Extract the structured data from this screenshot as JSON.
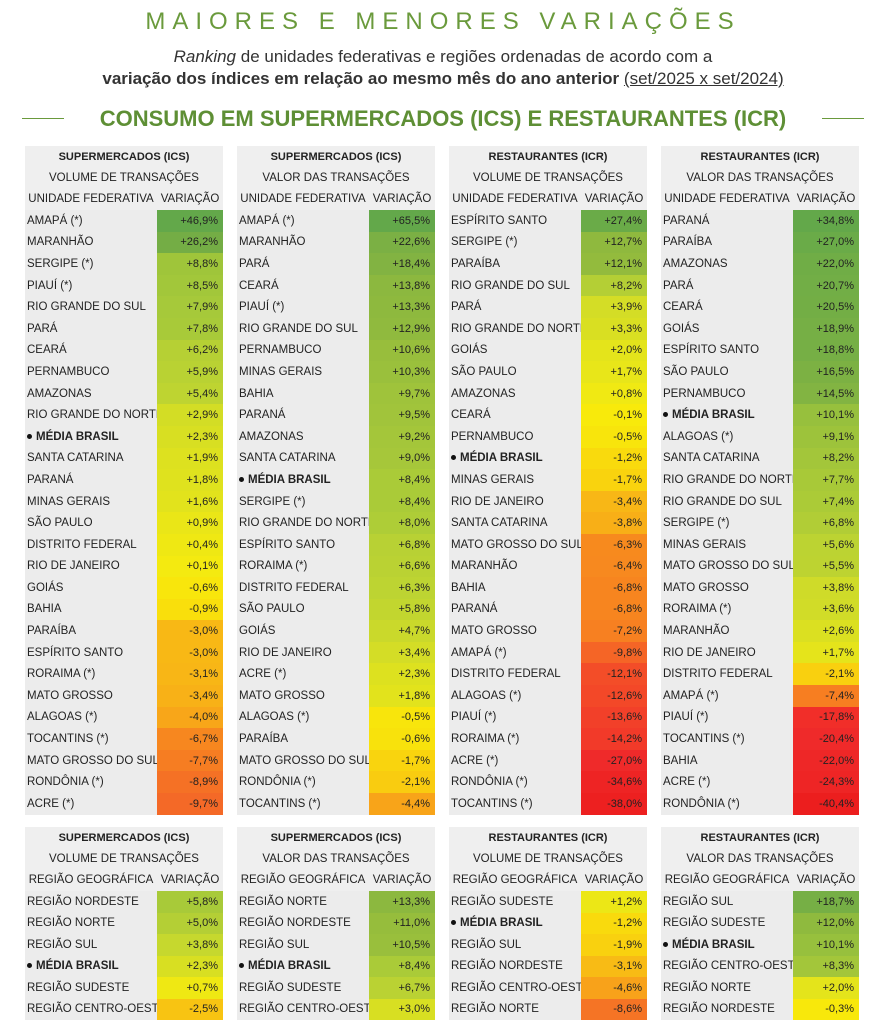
{
  "header": {
    "title": "MAIORES E MENORES VARIAÇÕES",
    "subtitle_italic": "Ranking",
    "subtitle_line1_rest": " de unidades federativas e regiões ordenadas de acordo com a",
    "subtitle_line2_bold": "variação dos índices em relação ao mesmo mês do ano anterior",
    "subtitle_line2_period": "(set/2025 x set/2024)",
    "section_title": "CONSUMO EM SUPERMERCADOS (ICS) E RESTAURANTES (ICR)"
  },
  "colors": {
    "accent": "#6a9a3c",
    "cell_gray": "#ececec",
    "header_gray": "#efefef"
  },
  "state_tables": [
    {
      "title": "SUPERMERCADOS (ICS)",
      "subtitle": "VOLUME DE TRANSAÇÕES",
      "col_name": "UNIDADE FEDERATIVA",
      "col_value": "VARIAÇÃO",
      "rows": [
        {
          "name": "AMAPÁ (*)",
          "value": "+46,9%",
          "color": "#63a84a"
        },
        {
          "name": "MARANHÃO",
          "value": "+26,2%",
          "color": "#74ad45"
        },
        {
          "name": "SERGIPE (*)",
          "value": "+8,8%",
          "color": "#9fc53a"
        },
        {
          "name": "PIAUÍ (*)",
          "value": "+8,5%",
          "color": "#a2c73a"
        },
        {
          "name": "RIO GRANDE DO SUL",
          "value": "+7,9%",
          "color": "#a6c93a"
        },
        {
          "name": "PARÁ",
          "value": "+7,8%",
          "color": "#a8ca39"
        },
        {
          "name": "CEARÁ",
          "value": "+6,2%",
          "color": "#b6d034"
        },
        {
          "name": "PERNAMBUCO",
          "value": "+5,9%",
          "color": "#b9d233"
        },
        {
          "name": "AMAZONAS",
          "value": "+5,4%",
          "color": "#bed431"
        },
        {
          "name": "RIO GRANDE DO NORTE",
          "value": "+2,9%",
          "color": "#d3dd25"
        },
        {
          "name": "MÉDIA BRASIL",
          "value": "+2,3%",
          "color": "#d8df22",
          "brasil": true
        },
        {
          "name": "SANTA CATARINA",
          "value": "+1,9%",
          "color": "#dde11f"
        },
        {
          "name": "PARANÁ",
          "value": "+1,8%",
          "color": "#dfe21e"
        },
        {
          "name": "MINAS GERAIS",
          "value": "+1,6%",
          "color": "#e2e31c"
        },
        {
          "name": "SÃO PAULO",
          "value": "+0,9%",
          "color": "#eae617"
        },
        {
          "name": "DISTRITO FEDERAL",
          "value": "+0,4%",
          "color": "#efe813"
        },
        {
          "name": "RIO DE JANEIRO",
          "value": "+0,1%",
          "color": "#f4ea10"
        },
        {
          "name": "GOIÁS",
          "value": "-0,6%",
          "color": "#f8e60c"
        },
        {
          "name": "BAHIA",
          "value": "-0,9%",
          "color": "#f9df0c"
        },
        {
          "name": "PARAÍBA",
          "value": "-3,0%",
          "color": "#f8b815"
        },
        {
          "name": "ESPÍRITO SANTO",
          "value": "-3,0%",
          "color": "#f8b815"
        },
        {
          "name": "RORAIMA (*)",
          "value": "-3,1%",
          "color": "#f8b616"
        },
        {
          "name": "MATO GROSSO",
          "value": "-3,4%",
          "color": "#f8b117"
        },
        {
          "name": "ALAGOAS (*)",
          "value": "-4,0%",
          "color": "#f8a619"
        },
        {
          "name": "TOCANTINS (*)",
          "value": "-6,7%",
          "color": "#f7871f"
        },
        {
          "name": "MATO GROSSO DO SUL",
          "value": "-7,7%",
          "color": "#f67d22"
        },
        {
          "name": "RONDÔNIA (*)",
          "value": "-8,9%",
          "color": "#f57125"
        },
        {
          "name": "ACRE (*)",
          "value": "-9,7%",
          "color": "#f46927"
        }
      ]
    },
    {
      "title": "SUPERMERCADOS (ICS)",
      "subtitle": "VALOR DAS TRANSAÇÕES",
      "col_name": "UNIDADE FEDERATIVA",
      "col_value": "VARIAÇÃO",
      "rows": [
        {
          "name": "AMAPÁ (*)",
          "value": "+65,5%",
          "color": "#63a84a"
        },
        {
          "name": "MARANHÃO",
          "value": "+22,6%",
          "color": "#7bb044"
        },
        {
          "name": "PARÁ",
          "value": "+18,4%",
          "color": "#82b342"
        },
        {
          "name": "CEARÁ",
          "value": "+13,8%",
          "color": "#8cb83f"
        },
        {
          "name": "PIAUÍ (*)",
          "value": "+13,3%",
          "color": "#8eb93e"
        },
        {
          "name": "RIO GRANDE DO SUL",
          "value": "+12,9%",
          "color": "#90ba3e"
        },
        {
          "name": "PERNAMBUCO",
          "value": "+10,6%",
          "color": "#98be3c"
        },
        {
          "name": "MINAS GERAIS",
          "value": "+10,3%",
          "color": "#9ac03c"
        },
        {
          "name": "BAHIA",
          "value": "+9,7%",
          "color": "#9fc33b"
        },
        {
          "name": "PARANÁ",
          "value": "+9,5%",
          "color": "#a1c43b"
        },
        {
          "name": "AMAZONAS",
          "value": "+9,2%",
          "color": "#a4c63a"
        },
        {
          "name": "SANTA CATARINA",
          "value": "+9,0%",
          "color": "#a6c73a"
        },
        {
          "name": "MÉDIA BRASIL",
          "value": "+8,4%",
          "color": "#aacb38",
          "brasil": true
        },
        {
          "name": "SERGIPE (*)",
          "value": "+8,4%",
          "color": "#aacb38"
        },
        {
          "name": "RIO GRANDE DO NORTE",
          "value": "+8,0%",
          "color": "#aecd37"
        },
        {
          "name": "ESPÍRITO SANTO",
          "value": "+6,8%",
          "color": "#b8d134"
        },
        {
          "name": "RORAIMA (*)",
          "value": "+6,6%",
          "color": "#bad233"
        },
        {
          "name": "DISTRITO FEDERAL",
          "value": "+6,3%",
          "color": "#bdd432"
        },
        {
          "name": "SÃO PAULO",
          "value": "+5,8%",
          "color": "#c2d62f"
        },
        {
          "name": "GOIÁS",
          "value": "+4,7%",
          "color": "#cad92b"
        },
        {
          "name": "RIO DE JANEIRO",
          "value": "+3,4%",
          "color": "#d4dd26"
        },
        {
          "name": "ACRE (*)",
          "value": "+2,3%",
          "color": "#dde11f"
        },
        {
          "name": "MATO GROSSO",
          "value": "+1,8%",
          "color": "#e2e31c"
        },
        {
          "name": "ALAGOAS (*)",
          "value": "-0,5%",
          "color": "#f8e50c"
        },
        {
          "name": "PARAÍBA",
          "value": "-0,6%",
          "color": "#f8e20c"
        },
        {
          "name": "MATO GROSSO DO SUL",
          "value": "-1,7%",
          "color": "#f9d40e"
        },
        {
          "name": "RONDÔNIA (*)",
          "value": "-2,1%",
          "color": "#f9cc10"
        },
        {
          "name": "TOCANTINS (*)",
          "value": "-4,4%",
          "color": "#f8a419"
        }
      ]
    },
    {
      "title": "RESTAURANTES (ICR)",
      "subtitle": "VOLUME DE TRANSAÇÕES",
      "col_name": "UNIDADE FEDERATIVA",
      "col_value": "VARIAÇÃO",
      "rows": [
        {
          "name": "ESPÍRITO SANTO",
          "value": "+27,4%",
          "color": "#6aab48"
        },
        {
          "name": "SERGIPE (*)",
          "value": "+12,7%",
          "color": "#8fb93e"
        },
        {
          "name": "PARAÍBA",
          "value": "+12,1%",
          "color": "#93bb3d"
        },
        {
          "name": "RIO GRANDE DO SUL",
          "value": "+8,2%",
          "color": "#b4cf35"
        },
        {
          "name": "PARÁ",
          "value": "+3,9%",
          "color": "#d4dd26"
        },
        {
          "name": "RIO GRANDE DO NORTE",
          "value": "+3,3%",
          "color": "#d9df22"
        },
        {
          "name": "GOIÁS",
          "value": "+2,0%",
          "color": "#e4e41b"
        },
        {
          "name": "SÃO PAULO",
          "value": "+1,7%",
          "color": "#e8e619"
        },
        {
          "name": "AMAZONAS",
          "value": "+0,8%",
          "color": "#f0e913"
        },
        {
          "name": "CEARÁ",
          "value": "-0,1%",
          "color": "#f8ea0b"
        },
        {
          "name": "PERNAMBUCO",
          "value": "-0,5%",
          "color": "#f8e50c"
        },
        {
          "name": "MÉDIA BRASIL",
          "value": "-1,2%",
          "color": "#f9da0d",
          "brasil": true
        },
        {
          "name": "MINAS GERAIS",
          "value": "-1,7%",
          "color": "#f9d30e"
        },
        {
          "name": "RIO DE JANEIRO",
          "value": "-3,4%",
          "color": "#f8b716"
        },
        {
          "name": "SANTA CATARINA",
          "value": "-3,8%",
          "color": "#f8af17"
        },
        {
          "name": "MATO GROSSO DO SUL",
          "value": "-6,3%",
          "color": "#f78a1e"
        },
        {
          "name": "MARANHÃO",
          "value": "-6,4%",
          "color": "#f7891f"
        },
        {
          "name": "BAHIA",
          "value": "-6,8%",
          "color": "#f7851f"
        },
        {
          "name": "PARANÁ",
          "value": "-6,8%",
          "color": "#f7851f"
        },
        {
          "name": "MATO GROSSO",
          "value": "-7,2%",
          "color": "#f78021"
        },
        {
          "name": "AMAPÁ (*)",
          "value": "-9,8%",
          "color": "#f56526"
        },
        {
          "name": "DISTRITO FEDERAL",
          "value": "-12,1%",
          "color": "#f34d28"
        },
        {
          "name": "ALAGOAS (*)",
          "value": "-12,6%",
          "color": "#f34828"
        },
        {
          "name": "PIAUÍ (*)",
          "value": "-13,6%",
          "color": "#f24029"
        },
        {
          "name": "RORAIMA (*)",
          "value": "-14,2%",
          "color": "#f23a29"
        },
        {
          "name": "ACRE (*)",
          "value": "-27,0%",
          "color": "#ef2a2a"
        },
        {
          "name": "RONDÔNIA (*)",
          "value": "-34,6%",
          "color": "#ee2424"
        },
        {
          "name": "TOCANTINS (*)",
          "value": "-38,0%",
          "color": "#ed2020"
        }
      ]
    },
    {
      "title": "RESTAURANTES (ICR)",
      "subtitle": "VALOR DAS TRANSAÇÕES",
      "col_name": "UNIDADE FEDERATIVA",
      "col_value": "VARIAÇÃO",
      "rows": [
        {
          "name": "PARANÁ",
          "value": "+34,8%",
          "color": "#63a84a"
        },
        {
          "name": "PARAÍBA",
          "value": "+27,0%",
          "color": "#6aab48"
        },
        {
          "name": "AMAZONAS",
          "value": "+22,0%",
          "color": "#70ad46"
        },
        {
          "name": "PARÁ",
          "value": "+20,7%",
          "color": "#72ae46"
        },
        {
          "name": "CEARÁ",
          "value": "+20,5%",
          "color": "#73ae45"
        },
        {
          "name": "GOIÁS",
          "value": "+18,9%",
          "color": "#76af45"
        },
        {
          "name": "ESPÍRITO SANTO",
          "value": "+18,8%",
          "color": "#76af45"
        },
        {
          "name": "SÃO PAULO",
          "value": "+16,5%",
          "color": "#7cb143"
        },
        {
          "name": "PERNAMBUCO",
          "value": "+14,5%",
          "color": "#82b442"
        },
        {
          "name": "MÉDIA BRASIL",
          "value": "+10,1%",
          "color": "#97c03d",
          "brasil": true
        },
        {
          "name": "ALAGOAS (*)",
          "value": "+9,1%",
          "color": "#9dc33b"
        },
        {
          "name": "SANTA CATARINA",
          "value": "+8,2%",
          "color": "#a3c63a"
        },
        {
          "name": "RIO GRANDE DO NORTE",
          "value": "+7,7%",
          "color": "#a8c938"
        },
        {
          "name": "RIO GRANDE DO SUL",
          "value": "+7,4%",
          "color": "#abcb37"
        },
        {
          "name": "SERGIPE (*)",
          "value": "+6,8%",
          "color": "#b1cd36"
        },
        {
          "name": "MINAS GERAIS",
          "value": "+5,6%",
          "color": "#bcd332"
        },
        {
          "name": "MATO GROSSO DO SUL",
          "value": "+5,5%",
          "color": "#bdd331"
        },
        {
          "name": "MATO GROSSO",
          "value": "+3,8%",
          "color": "#cfdb29"
        },
        {
          "name": "RORAIMA (*)",
          "value": "+3,6%",
          "color": "#d1dc28"
        },
        {
          "name": "MARANHÃO",
          "value": "+2,6%",
          "color": "#dbe021"
        },
        {
          "name": "RIO DE JANEIRO",
          "value": "+1,7%",
          "color": "#e5e41b"
        },
        {
          "name": "DISTRITO FEDERAL",
          "value": "-2,1%",
          "color": "#f9d00f"
        },
        {
          "name": "AMAPÁ (*)",
          "value": "-7,4%",
          "color": "#f77e21"
        },
        {
          "name": "PIAUÍ (*)",
          "value": "-17,8%",
          "color": "#f12e29"
        },
        {
          "name": "TOCANTINS (*)",
          "value": "-20,4%",
          "color": "#ef2a2a"
        },
        {
          "name": "BAHIA",
          "value": "-22,0%",
          "color": "#ee2727"
        },
        {
          "name": "ACRE (*)",
          "value": "-24,3%",
          "color": "#ee2525"
        },
        {
          "name": "RONDÔNIA (*)",
          "value": "-40,4%",
          "color": "#ec1e1e"
        }
      ]
    }
  ],
  "region_tables": [
    {
      "title": "SUPERMERCADOS (ICS)",
      "subtitle": "VOLUME DE TRANSAÇÕES",
      "col_name": "REGIÃO GEOGRÁFICA",
      "col_value": "VARIAÇÃO",
      "rows": [
        {
          "name": "REGIÃO NORDESTE",
          "value": "+5,8%",
          "color": "#a8ca39"
        },
        {
          "name": "REGIÃO NORTE",
          "value": "+5,0%",
          "color": "#b4cf35"
        },
        {
          "name": "REGIÃO SUL",
          "value": "+3,8%",
          "color": "#c6d82e"
        },
        {
          "name": "MÉDIA BRASIL",
          "value": "+2,3%",
          "color": "#d8df22",
          "brasil": true
        },
        {
          "name": "REGIÃO SUDESTE",
          "value": "+0,7%",
          "color": "#efe813"
        },
        {
          "name": "REGIÃO CENTRO-OESTE",
          "value": "-2,5%",
          "color": "#f8c412"
        }
      ]
    },
    {
      "title": "SUPERMERCADOS (ICS)",
      "subtitle": "VALOR DAS TRANSAÇÕES",
      "col_name": "REGIÃO GEOGRÁFICA",
      "col_value": "VARIAÇÃO",
      "rows": [
        {
          "name": "REGIÃO NORTE",
          "value": "+13,3%",
          "color": "#8cb83f"
        },
        {
          "name": "REGIÃO NORDESTE",
          "value": "+11,0%",
          "color": "#96bd3c"
        },
        {
          "name": "REGIÃO SUL",
          "value": "+10,5%",
          "color": "#99bf3c"
        },
        {
          "name": "MÉDIA BRASIL",
          "value": "+8,4%",
          "color": "#aacb38",
          "brasil": true
        },
        {
          "name": "REGIÃO SUDESTE",
          "value": "+6,7%",
          "color": "#bad233"
        },
        {
          "name": "REGIÃO CENTRO-OESTE",
          "value": "+3,0%",
          "color": "#d8df22"
        }
      ]
    },
    {
      "title": "RESTAURANTES (ICR)",
      "subtitle": "VOLUME DE TRANSAÇÕES",
      "col_name": "REGIÃO GEOGRÁFICA",
      "col_value": "VARIAÇÃO",
      "rows": [
        {
          "name": "REGIÃO SUDESTE",
          "value": "+1,2%",
          "color": "#ece716"
        },
        {
          "name": "MÉDIA BRASIL",
          "value": "-1,2%",
          "color": "#f9da0d",
          "brasil": true
        },
        {
          "name": "REGIÃO SUL",
          "value": "-1,9%",
          "color": "#f9d10f"
        },
        {
          "name": "REGIÃO NORDESTE",
          "value": "-3,1%",
          "color": "#f8bb15"
        },
        {
          "name": "REGIÃO CENTRO-OESTE",
          "value": "-4,6%",
          "color": "#f8a21a"
        },
        {
          "name": "REGIÃO NORTE",
          "value": "-8,6%",
          "color": "#f57425"
        }
      ]
    },
    {
      "title": "RESTAURANTES (ICR)",
      "subtitle": "VALOR DAS TRANSAÇÕES",
      "col_name": "REGIÃO GEOGRÁFICA",
      "col_value": "VARIAÇÃO",
      "rows": [
        {
          "name": "REGIÃO SUL",
          "value": "+18,7%",
          "color": "#76af45"
        },
        {
          "name": "REGIÃO SUDESTE",
          "value": "+12,0%",
          "color": "#8fba3e"
        },
        {
          "name": "MÉDIA BRASIL",
          "value": "+10,1%",
          "color": "#97c03d",
          "brasil": true
        },
        {
          "name": "REGIÃO CENTRO-OESTE",
          "value": "+8,3%",
          "color": "#a3c63a"
        },
        {
          "name": "REGIÃO NORTE",
          "value": "+2,0%",
          "color": "#e4e41b"
        },
        {
          "name": "REGIÃO NORDESTE",
          "value": "-0,3%",
          "color": "#f8e80b"
        }
      ]
    }
  ]
}
